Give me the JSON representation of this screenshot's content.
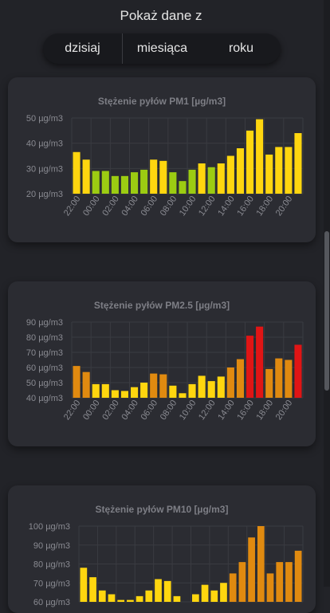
{
  "header": {
    "title": "Pokaż dane z"
  },
  "range_tabs": [
    {
      "label": "dzisiaj"
    },
    {
      "label": "miesiąca"
    },
    {
      "label": "roku"
    }
  ],
  "colors": {
    "green": "#9ccc12",
    "yellow": "#ffd60f",
    "orange": "#e08a10",
    "red": "#e01515",
    "grid": "#3a3b41",
    "axis_text": "#8a8b92",
    "title_text": "#7d7e85"
  },
  "chart_data": [
    {
      "type": "bar",
      "title": "Stężenie pyłów PM1 [µg/m3]",
      "unit": "µg/m3",
      "ylim": [
        20,
        50
      ],
      "yticks": [
        20,
        30,
        40,
        50
      ],
      "x_labels": [
        "22:00",
        "00:00",
        "02:00",
        "04:00",
        "06:00",
        "08:00",
        "10:00",
        "12:00",
        "14:00",
        "16:00",
        "18:00",
        "20:00"
      ],
      "values": [
        36.5,
        33.5,
        29,
        29,
        27,
        27,
        28.5,
        29.5,
        33.5,
        33,
        28.5,
        25,
        29.5,
        32,
        30.5,
        32,
        35,
        38,
        45,
        49.5,
        35.5,
        38.5,
        38.5,
        44
      ],
      "colors": [
        "yellow",
        "yellow",
        "green",
        "green",
        "green",
        "green",
        "green",
        "green",
        "yellow",
        "yellow",
        "green",
        "green",
        "green",
        "yellow",
        "green",
        "yellow",
        "yellow",
        "yellow",
        "yellow",
        "yellow",
        "yellow",
        "yellow",
        "yellow",
        "yellow"
      ]
    },
    {
      "type": "bar",
      "title": "Stężenie pyłów PM2.5 [µg/m3]",
      "unit": "µg/m3",
      "ylim": [
        40,
        90
      ],
      "yticks": [
        40,
        50,
        60,
        70,
        80,
        90
      ],
      "x_labels": [
        "22:00",
        "00:00",
        "02:00",
        "04:00",
        "06:00",
        "08:00",
        "10:00",
        "12:00",
        "14:00",
        "16:00",
        "18:00",
        "20:00"
      ],
      "values": [
        61,
        57,
        49,
        49,
        45,
        44.5,
        47,
        50,
        56,
        55.5,
        48,
        43,
        49,
        54.5,
        51,
        54,
        60,
        65.5,
        81,
        87,
        59,
        66,
        65,
        75
      ],
      "colors": [
        "orange",
        "orange",
        "yellow",
        "yellow",
        "yellow",
        "yellow",
        "yellow",
        "yellow",
        "orange",
        "orange",
        "yellow",
        "yellow",
        "yellow",
        "yellow",
        "yellow",
        "yellow",
        "orange",
        "orange",
        "red",
        "red",
        "orange",
        "orange",
        "orange",
        "red"
      ]
    },
    {
      "type": "bar",
      "title": "Stężenie pyłów PM10 [µg/m3]",
      "unit": "µg/m3",
      "ylim": [
        60,
        100
      ],
      "yticks": [
        60,
        70,
        80,
        90,
        100
      ],
      "x_labels": [],
      "values": [
        78,
        73,
        66,
        64,
        61,
        61,
        63,
        66,
        72,
        71,
        63,
        59,
        64,
        69,
        66,
        70,
        75,
        81,
        94,
        100,
        75,
        81,
        81,
        87
      ],
      "colors": [
        "yellow",
        "yellow",
        "yellow",
        "yellow",
        "yellow",
        "yellow",
        "yellow",
        "yellow",
        "yellow",
        "yellow",
        "yellow",
        "yellow",
        "yellow",
        "yellow",
        "yellow",
        "yellow",
        "orange",
        "orange",
        "orange",
        "orange",
        "orange",
        "orange",
        "orange",
        "orange"
      ]
    }
  ]
}
